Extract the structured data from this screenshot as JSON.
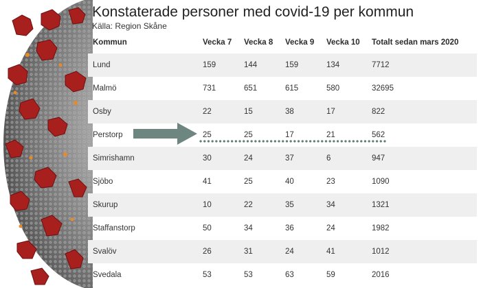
{
  "header": {
    "title": "Konstaterade personer med covid-19 per kommun",
    "source": "Källa: Region Skåne"
  },
  "table": {
    "columns": [
      "Kommun",
      "Vecka 7",
      "Vecka 8",
      "Vecka 9",
      "Vecka 10",
      "Totalt sedan mars 2020"
    ],
    "rows": [
      [
        "Lund",
        "159",
        "144",
        "159",
        "134",
        "7712"
      ],
      [
        "Malmö",
        "731",
        "651",
        "615",
        "580",
        "32695"
      ],
      [
        "Osby",
        "22",
        "15",
        "38",
        "17",
        "822"
      ],
      [
        "Perstorp",
        "25",
        "25",
        "17",
        "21",
        "562"
      ],
      [
        "Simrishamn",
        "30",
        "24",
        "37",
        "6",
        "947"
      ],
      [
        "Sjöbo",
        "41",
        "25",
        "40",
        "23",
        "1090"
      ],
      [
        "Skurup",
        "10",
        "22",
        "35",
        "34",
        "1321"
      ],
      [
        "Staffanstorp",
        "50",
        "34",
        "36",
        "24",
        "1982"
      ],
      [
        "Svalöv",
        "26",
        "31",
        "24",
        "41",
        "1012"
      ],
      [
        "Svedala",
        "53",
        "53",
        "63",
        "59",
        "2016"
      ]
    ]
  },
  "annotation": {
    "highlighted_row": "Perstorp",
    "arrow_color": "#6e8680",
    "dots_color": "#5f7d73"
  },
  "colors": {
    "row_alt_bg": "#efefef",
    "virus_red": "#a8201e",
    "virus_grey": "#8a8a8a"
  }
}
